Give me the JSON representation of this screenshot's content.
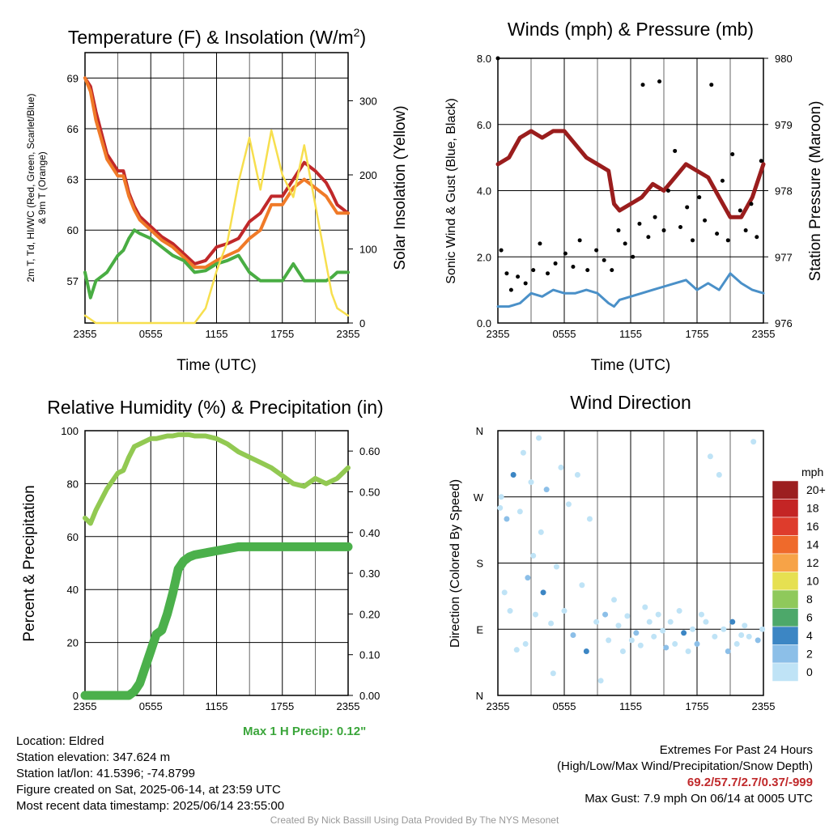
{
  "xticks": [
    "2355",
    "0555",
    "1155",
    "1755",
    "2355"
  ],
  "xlabel": "Time (UTC)",
  "chart_data": [
    {
      "type": "line",
      "title_main": "Temperature (F) & Insolation (W/m",
      "title_sup": "2",
      "title_end": ")",
      "ylabel_left": "2m T, Td, HI/WC (Red, Green, Scarlet/Blue)",
      "ylabel_left2": "& 9m T (Orange)",
      "ylabel_right": "Solar Insolation (Yellow)",
      "ylim_left": [
        54.5,
        70.5
      ],
      "ylim_right": [
        0,
        365
      ],
      "yticks_left": [
        "57",
        "60",
        "63",
        "66",
        "69"
      ],
      "yticks_right": [
        "0",
        "100",
        "200",
        "300"
      ],
      "x_hours": [
        0,
        0.5,
        1,
        2,
        3,
        3.5,
        4,
        4.5,
        5,
        6,
        7,
        8,
        9,
        10,
        11,
        12,
        13,
        14,
        15,
        16,
        17,
        18,
        19,
        20,
        21,
        22,
        22.5,
        23,
        24
      ],
      "series": [
        {
          "color": "#c0282a",
          "values": [
            69,
            68.5,
            67,
            64.5,
            63.5,
            63.5,
            62.2,
            61.4,
            60.8,
            60.2,
            59.6,
            59.2,
            58.6,
            58,
            58.2,
            59,
            59.2,
            59.5,
            60.5,
            61,
            62,
            62,
            63,
            64,
            63.5,
            62.8,
            62.2,
            61.5,
            61
          ]
        },
        {
          "color": "#f07a28",
          "values": [
            69,
            68.2,
            66.5,
            64.2,
            63.2,
            63.2,
            62,
            61.2,
            60.6,
            60,
            59.4,
            59,
            58.4,
            57.8,
            57.8,
            58.2,
            58.5,
            58.8,
            59.5,
            60,
            61.5,
            61.5,
            62.5,
            63,
            62.5,
            62,
            61.5,
            61,
            61
          ]
        },
        {
          "color": "#49ad43",
          "values": [
            57.5,
            56,
            57,
            57.5,
            58.5,
            58.8,
            59.5,
            60,
            59.8,
            59.5,
            59,
            58.5,
            58.2,
            57.5,
            57.6,
            58,
            58.2,
            58.5,
            57.5,
            57,
            57,
            57,
            58,
            57,
            57,
            57,
            57.2,
            57.5,
            57.5
          ]
        },
        {
          "color": "#f7df4e",
          "axis": "right",
          "values": [
            10,
            5,
            0,
            0,
            0,
            0,
            0,
            0,
            0,
            0,
            0,
            0,
            0,
            0,
            20,
            70,
            110,
            190,
            250,
            180,
            260,
            200,
            170,
            240,
            160,
            80,
            40,
            20,
            10
          ]
        }
      ]
    },
    {
      "type": "line",
      "title": "Winds (mph) & Pressure (mb)",
      "ylabel_left": "Sonic Wind & Gust (Blue, Black)",
      "ylabel_right": "Station Pressure (Maroon)",
      "ylim_left": [
        0,
        8
      ],
      "ylim_right": [
        976,
        980
      ],
      "yticks_left": [
        "0.0",
        "2.0",
        "4.0",
        "6.0",
        "8.0"
      ],
      "yticks_right": [
        "976",
        "977",
        "978",
        "979",
        "980"
      ],
      "x_hours": [
        0,
        1,
        2,
        3,
        4,
        5,
        6,
        7,
        8,
        9,
        10,
        10.5,
        11,
        12,
        13,
        14,
        15,
        16,
        17,
        18,
        19,
        20,
        21,
        22,
        23,
        24
      ],
      "series": [
        {
          "name": "Pressure",
          "color": "#9a1d1d",
          "axis": "right",
          "values": [
            978.4,
            978.5,
            978.8,
            978.9,
            978.8,
            978.9,
            978.9,
            978.7,
            978.5,
            978.4,
            978.3,
            977.8,
            977.7,
            977.8,
            977.9,
            978.1,
            978.0,
            978.2,
            978.4,
            978.3,
            978.2,
            977.9,
            977.6,
            977.6,
            977.9,
            978.4
          ]
        },
        {
          "name": "Wind",
          "color": "#4a90c8",
          "values": [
            0.5,
            0.5,
            0.6,
            0.9,
            0.8,
            1.0,
            0.9,
            0.9,
            1.0,
            0.9,
            0.6,
            0.5,
            0.7,
            0.8,
            0.9,
            1.0,
            1.1,
            1.2,
            1.3,
            1.0,
            1.2,
            1.0,
            1.5,
            1.2,
            1.0,
            0.9
          ]
        }
      ],
      "gust_points": [
        [
          0,
          8
        ],
        [
          0.3,
          2.2
        ],
        [
          0.8,
          1.5
        ],
        [
          1.2,
          1.0
        ],
        [
          1.8,
          1.4
        ],
        [
          2.5,
          1.2
        ],
        [
          3.2,
          1.6
        ],
        [
          3.8,
          2.4
        ],
        [
          4.5,
          1.5
        ],
        [
          5.2,
          1.8
        ],
        [
          6.1,
          2.1
        ],
        [
          6.8,
          1.7
        ],
        [
          7.4,
          2.5
        ],
        [
          8.1,
          1.6
        ],
        [
          8.9,
          2.2
        ],
        [
          9.6,
          1.9
        ],
        [
          10.3,
          1.6
        ],
        [
          10.9,
          2.8
        ],
        [
          11.5,
          2.4
        ],
        [
          12.2,
          2.0
        ],
        [
          12.8,
          3.0
        ],
        [
          13.1,
          7.2
        ],
        [
          13.6,
          2.6
        ],
        [
          14.2,
          3.2
        ],
        [
          14.6,
          7.3
        ],
        [
          15.0,
          2.8
        ],
        [
          15.4,
          4.0
        ],
        [
          16.0,
          5.2
        ],
        [
          16.5,
          2.9
        ],
        [
          17.1,
          3.5
        ],
        [
          17.6,
          2.5
        ],
        [
          18.2,
          3.8
        ],
        [
          18.7,
          3.1
        ],
        [
          19.3,
          7.2
        ],
        [
          19.8,
          2.7
        ],
        [
          20.3,
          4.3
        ],
        [
          20.8,
          2.5
        ],
        [
          21.2,
          5.1
        ],
        [
          21.9,
          3.4
        ],
        [
          22.4,
          2.8
        ],
        [
          22.9,
          3.6
        ],
        [
          23.4,
          2.6
        ],
        [
          23.8,
          4.9
        ]
      ]
    },
    {
      "type": "line",
      "title": "Relative Humidity (%) & Precipitation (in)",
      "ylabel_left": "Percent & Precipitation",
      "ylim_left": [
        0,
        100
      ],
      "ylim_right": [
        0,
        0.65
      ],
      "yticks_left": [
        "0",
        "20",
        "40",
        "60",
        "80",
        "100"
      ],
      "yticks_right": [
        "0.00",
        "0.10",
        "0.20",
        "0.30",
        "0.40",
        "0.50",
        "0.60"
      ],
      "x_hours": [
        0,
        0.5,
        1,
        2,
        3,
        3.5,
        4,
        4.5,
        5,
        5.5,
        6,
        6.5,
        7,
        7.5,
        8,
        8.5,
        9,
        9.5,
        10,
        11,
        12,
        13,
        14,
        15,
        16,
        17,
        18,
        19,
        20,
        21,
        22,
        23,
        24
      ],
      "series": [
        {
          "name": "RH",
          "color": "#92c952",
          "values": [
            67,
            65,
            70,
            78,
            84,
            85,
            90,
            94,
            95,
            96,
            97,
            97,
            97.5,
            98,
            98,
            98.5,
            98.5,
            98.5,
            98,
            98,
            97,
            95,
            92,
            90,
            88,
            86,
            83,
            80,
            79,
            82,
            80,
            82,
            86
          ]
        },
        {
          "name": "Precip",
          "color": "#4bb04b",
          "axis": "right",
          "values": [
            0,
            0,
            0,
            0,
            0,
            0,
            0,
            0.01,
            0.03,
            0.07,
            0.11,
            0.15,
            0.16,
            0.2,
            0.25,
            0.31,
            0.33,
            0.34,
            0.345,
            0.35,
            0.355,
            0.36,
            0.365,
            0.365,
            0.365,
            0.365,
            0.365,
            0.365,
            0.365,
            0.365,
            0.365,
            0.365,
            0.365
          ]
        }
      ],
      "annotation": "Max 1 H Precip: 0.12\""
    },
    {
      "type": "scatter",
      "title": "Wind Direction",
      "ylabel_left": "Direction (Colored By Speed)",
      "ylim_left": [
        0,
        360
      ],
      "yticks_left": [
        "N",
        "E",
        "S",
        "W",
        "N"
      ],
      "legend_title": "mph",
      "legend_labels": [
        "20+",
        "18",
        "16",
        "14",
        "12",
        "10",
        "8",
        "6",
        "4",
        "2",
        "0"
      ],
      "legend_colors": [
        "#9c1f20",
        "#c42525",
        "#de3c2c",
        "#ef6a2b",
        "#f7a347",
        "#e6e051",
        "#8fc95b",
        "#4da86a",
        "#3c86c4",
        "#8cbfe8",
        "#bfe3f6"
      ],
      "points": [
        [
          0.2,
          255
        ],
        [
          0.3,
          270
        ],
        [
          0.6,
          140
        ],
        [
          0.8,
          240
        ],
        [
          1.1,
          115
        ],
        [
          1.4,
          300
        ],
        [
          1.7,
          62
        ],
        [
          2.0,
          250
        ],
        [
          2.3,
          330
        ],
        [
          2.5,
          70
        ],
        [
          2.7,
          160
        ],
        [
          3.0,
          290
        ],
        [
          3.2,
          190
        ],
        [
          3.4,
          110
        ],
        [
          3.7,
          350
        ],
        [
          3.9,
          222
        ],
        [
          4.1,
          140
        ],
        [
          4.4,
          280
        ],
        [
          4.8,
          98
        ],
        [
          5.0,
          30
        ],
        [
          5.3,
          175
        ],
        [
          5.7,
          310
        ],
        [
          6.0,
          115
        ],
        [
          6.4,
          260
        ],
        [
          6.8,
          82
        ],
        [
          7.2,
          300
        ],
        [
          7.6,
          150
        ],
        [
          8.0,
          60
        ],
        [
          8.3,
          240
        ],
        [
          8.9,
          100
        ],
        [
          9.3,
          20
        ],
        [
          9.7,
          110
        ],
        [
          10.0,
          75
        ],
        [
          10.5,
          130
        ],
        [
          10.9,
          95
        ],
        [
          11.3,
          60
        ],
        [
          11.7,
          108
        ],
        [
          12.1,
          75
        ],
        [
          12.5,
          85
        ],
        [
          12.9,
          68
        ],
        [
          13.3,
          120
        ],
        [
          13.7,
          100
        ],
        [
          14.1,
          80
        ],
        [
          14.5,
          110
        ],
        [
          14.9,
          88
        ],
        [
          15.2,
          65
        ],
        [
          15.6,
          100
        ],
        [
          16.0,
          70
        ],
        [
          16.4,
          115
        ],
        [
          16.8,
          85
        ],
        [
          17.2,
          60
        ],
        [
          17.6,
          90
        ],
        [
          18.0,
          70
        ],
        [
          18.4,
          110
        ],
        [
          18.8,
          100
        ],
        [
          19.2,
          325
        ],
        [
          19.6,
          80
        ],
        [
          20.0,
          300
        ],
        [
          20.4,
          90
        ],
        [
          20.8,
          60
        ],
        [
          21.2,
          100
        ],
        [
          21.6,
          70
        ],
        [
          22.0,
          82
        ],
        [
          22.3,
          95
        ],
        [
          22.7,
          80
        ],
        [
          23.1,
          345
        ],
        [
          23.5,
          75
        ],
        [
          23.9,
          90
        ]
      ]
    }
  ],
  "info": {
    "location": "Location: Eldred",
    "elevation": "Station elevation: 347.624 m",
    "latlon": "Station lat/lon: 41.5396; -74.8799",
    "created": "Figure created on Sat, 2025-06-14, at 23:59 UTC",
    "recent": "Most recent data timestamp: 2025/06/14 23:55:00"
  },
  "extremes": {
    "title": "Extremes For Past 24 Hours",
    "subtitle": "(High/Low/Max Wind/Precipitation/Snow Depth)",
    "values": "69.2/57.7/2.7/0.37/-999",
    "gust": "Max Gust: 7.9 mph On 06/14 at 0005 UTC"
  },
  "credit": "Created By Nick Bassill Using Data Provided By The NYS Mesonet"
}
